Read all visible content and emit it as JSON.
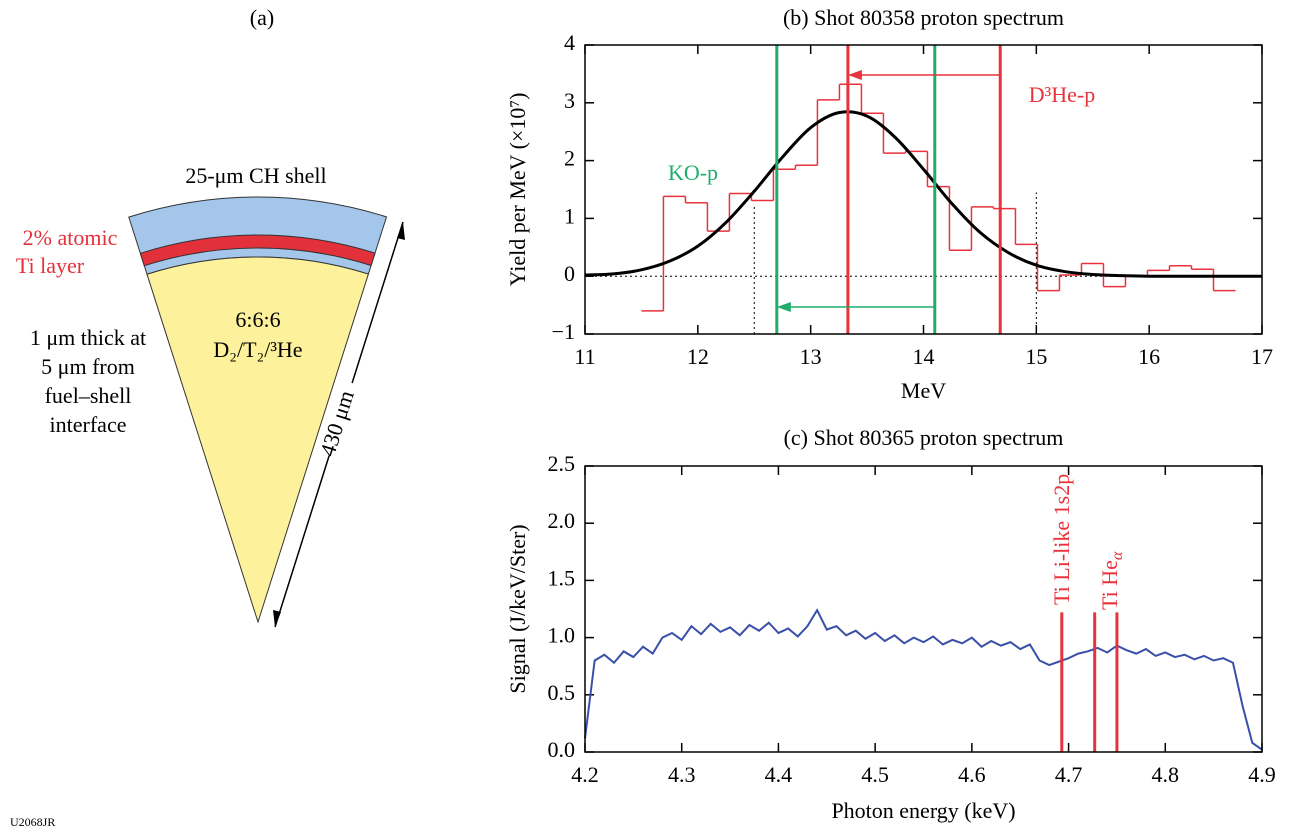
{
  "figure_id": "U2068JR",
  "diagram": {
    "title": "(a)",
    "shell_label": "25-μm CH shell",
    "layer_label": [
      "2% atomic",
      "Ti layer"
    ],
    "fuel_label": [
      "6:6:6",
      "D₂/T₂/³He"
    ],
    "layer_note": [
      "1 μm thick at",
      "5 μm from",
      "fuel–shell",
      "interface"
    ],
    "radius_label": "430 μm"
  },
  "chart_data": [
    {
      "type": "histogram",
      "title": "(b) Shot 80358 proton spectrum",
      "xlabel": "MeV",
      "ylabel": "Yield per MeV (×10⁷)",
      "xlim": [
        11,
        17
      ],
      "ylim": [
        -1,
        4
      ],
      "xticks": [
        11,
        12,
        13,
        14,
        15,
        16,
        17
      ],
      "yticks": [
        {
          "value": -1,
          "label": "−1"
        },
        0,
        1,
        2,
        3,
        4
      ],
      "color": "#e8323c",
      "bins": [
        11.5,
        11.695,
        11.89,
        12.085,
        12.28,
        12.475,
        12.67,
        12.865,
        13.06,
        13.255,
        13.45,
        13.645,
        13.84,
        14.035,
        14.23,
        14.425,
        14.62,
        14.815,
        15.01,
        15.205,
        15.4,
        15.595,
        15.79,
        15.985,
        16.18,
        16.375,
        16.57,
        16.765
      ],
      "values": [
        -0.6,
        1.38,
        1.27,
        0.78,
        1.43,
        1.31,
        1.85,
        1.92,
        3.05,
        3.32,
        2.82,
        2.13,
        2.16,
        1.55,
        0.45,
        1.2,
        1.17,
        0.55,
        -0.25,
        0.02,
        0.22,
        -0.18,
        0.0,
        0.1,
        0.18,
        0.12,
        -0.25
      ],
      "fit": {
        "color": "#000000",
        "x": [
          11,
          11.25,
          11.5,
          11.75,
          12,
          12.25,
          12.5,
          12.75,
          13,
          13.25,
          13.5,
          13.75,
          14,
          14.25,
          14.5,
          14.75,
          15,
          15.25,
          15.5,
          15.75,
          16,
          16.25,
          16.5,
          16.75,
          17
        ],
        "values": [
          0.02,
          0.04,
          0.11,
          0.26,
          0.52,
          0.93,
          1.47,
          2.06,
          2.57,
          2.83,
          2.77,
          2.4,
          1.85,
          1.26,
          0.76,
          0.41,
          0.19,
          0.08,
          0.03,
          0.01,
          0,
          0,
          0,
          0,
          0
        ]
      },
      "vlines": [
        {
          "x": 12.7,
          "color": "#1fad6b"
        },
        {
          "x": 14.1,
          "color": "#1fad6b"
        },
        {
          "x": 13.33,
          "color": "#e8323c"
        },
        {
          "x": 14.68,
          "color": "#e8323c"
        }
      ],
      "arrows": [
        {
          "from": 14.68,
          "to": 13.33,
          "color": "#e8323c"
        },
        {
          "from": 14.1,
          "to": 12.7,
          "color": "#1fad6b"
        }
      ],
      "dotted_hline": 0,
      "dotted_vlines": [
        {
          "x": 12.5,
          "top": 1.2
        },
        {
          "x": 15.0,
          "top": 1.45
        }
      ],
      "annotations": [
        {
          "text": "KO-p",
          "color": "#1fad6b"
        },
        {
          "text": "D³He-p",
          "color": "#e8323c"
        }
      ]
    },
    {
      "type": "line",
      "title": "(c) Shot 80365 proton spectrum",
      "xlabel": "Photon energy (keV)",
      "ylabel": "Signal (J/keV/Ster)",
      "xlim": [
        4.2,
        4.9
      ],
      "ylim": [
        0,
        2.5
      ],
      "xticks": [
        4.2,
        4.3,
        4.4,
        4.5,
        4.6,
        4.7,
        4.8,
        4.9
      ],
      "yticks": [
        {
          "value": 0,
          "label": "0.0"
        },
        0.5,
        {
          "value": 1,
          "label": "1.0"
        },
        1.5,
        {
          "value": 2,
          "label": "2.0"
        },
        2.5
      ],
      "color": "#3a4fa8",
      "x": [
        4.2,
        4.21,
        4.22,
        4.23,
        4.24,
        4.25,
        4.26,
        4.27,
        4.28,
        4.29,
        4.3,
        4.31,
        4.32,
        4.33,
        4.34,
        4.35,
        4.36,
        4.37,
        4.38,
        4.39,
        4.4,
        4.41,
        4.42,
        4.43,
        4.44,
        4.45,
        4.46,
        4.47,
        4.48,
        4.49,
        4.5,
        4.51,
        4.52,
        4.53,
        4.54,
        4.55,
        4.56,
        4.57,
        4.58,
        4.59,
        4.6,
        4.61,
        4.62,
        4.63,
        4.64,
        4.65,
        4.66,
        4.67,
        4.68,
        4.69,
        4.7,
        4.71,
        4.72,
        4.73,
        4.74,
        4.75,
        4.76,
        4.77,
        4.78,
        4.79,
        4.8,
        4.81,
        4.82,
        4.83,
        4.84,
        4.85,
        4.86,
        4.87,
        4.88,
        4.89,
        4.9
      ],
      "values": [
        0.12,
        0.8,
        0.85,
        0.78,
        0.88,
        0.83,
        0.92,
        0.86,
        1.0,
        1.04,
        0.98,
        1.1,
        1.03,
        1.12,
        1.05,
        1.09,
        1.02,
        1.11,
        1.06,
        1.13,
        1.04,
        1.08,
        1.01,
        1.1,
        1.24,
        1.07,
        1.1,
        1.02,
        1.06,
        0.99,
        1.04,
        0.97,
        1.02,
        0.95,
        1.0,
        0.96,
        1.01,
        0.94,
        0.98,
        0.95,
        1.0,
        0.92,
        0.97,
        0.93,
        0.96,
        0.9,
        0.94,
        0.8,
        0.76,
        0.79,
        0.82,
        0.86,
        0.88,
        0.91,
        0.87,
        0.93,
        0.89,
        0.86,
        0.9,
        0.84,
        0.87,
        0.83,
        0.85,
        0.81,
        0.84,
        0.8,
        0.82,
        0.78,
        0.4,
        0.08,
        0.02
      ],
      "vlines": [
        {
          "x": 4.693,
          "top": 1.22,
          "color": "#e8323c"
        },
        {
          "x": 4.727,
          "top": 1.22,
          "color": "#e8323c"
        },
        {
          "x": 4.75,
          "top": 1.22,
          "color": "#e8323c"
        }
      ],
      "annotations": [
        {
          "text": "Ti Li-like 1s2p",
          "color": "#e8323c"
        },
        {
          "text": "Ti He",
          "sub": "α",
          "color": "#e8323c"
        }
      ]
    }
  ]
}
